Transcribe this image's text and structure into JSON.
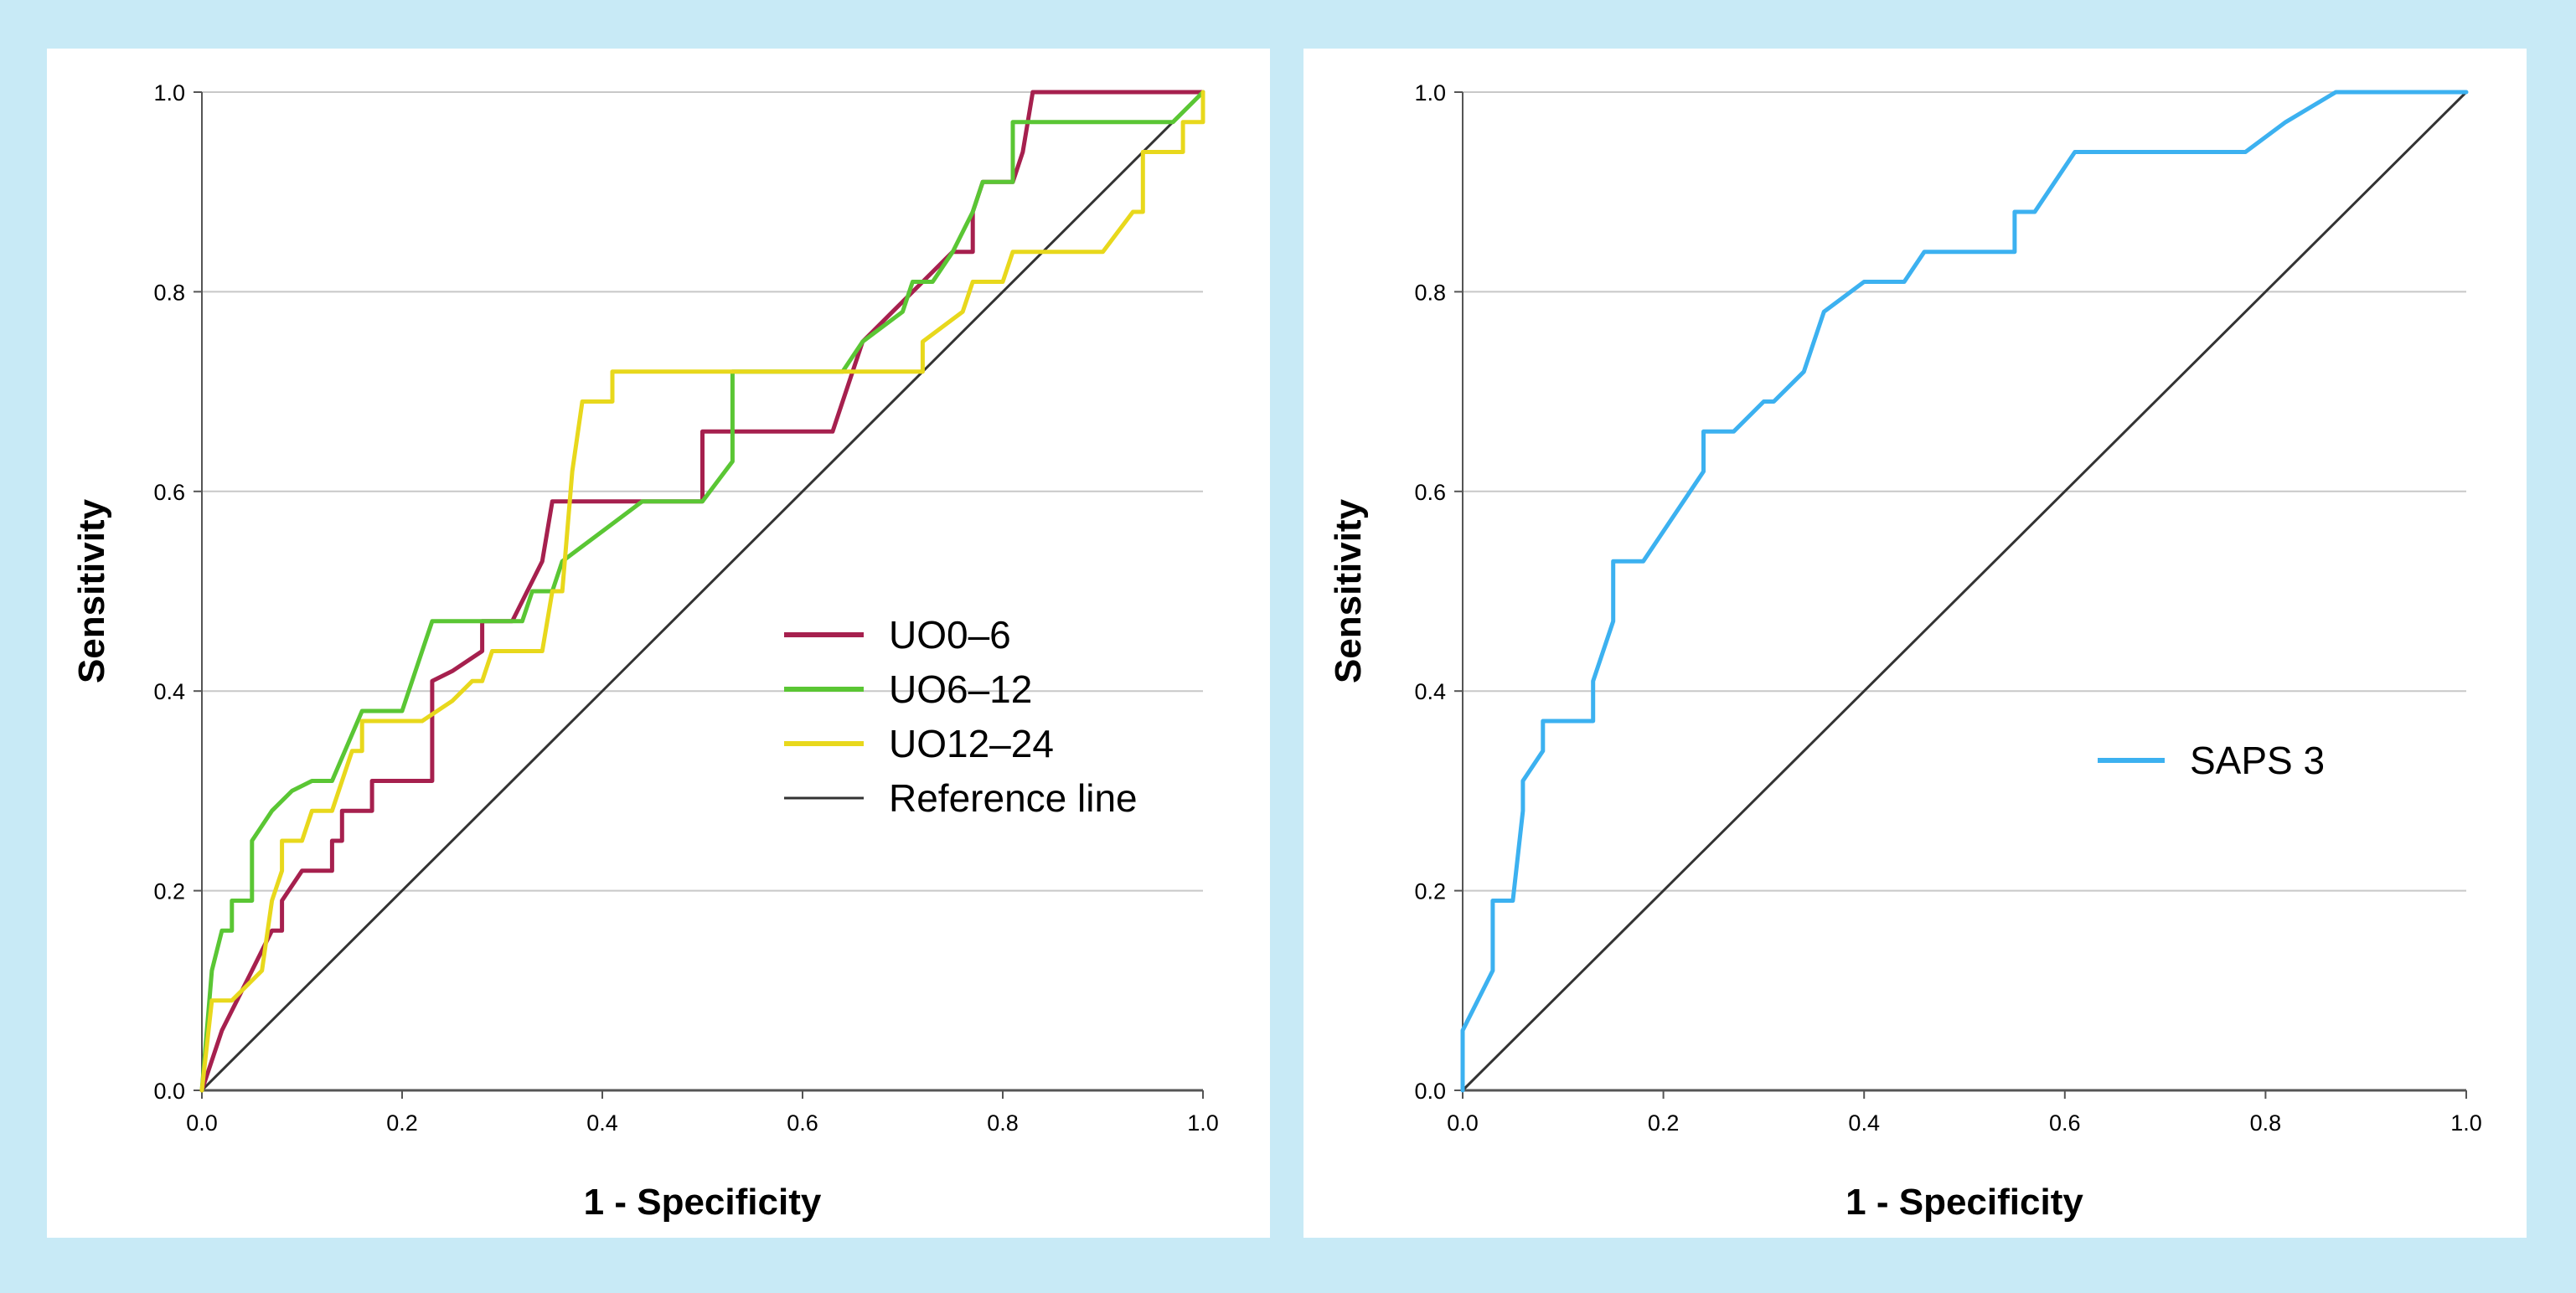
{
  "chart_data": [
    {
      "type": "line",
      "title": "",
      "xlabel": "1 - Specificity",
      "ylabel": "Sensitivity",
      "xlim": [
        0,
        1
      ],
      "ylim": [
        0,
        1
      ],
      "xticks": [
        "0.0",
        "0.2",
        "0.4",
        "0.6",
        "0.8",
        "1.0"
      ],
      "yticks": [
        "0.0",
        "0.2",
        "0.4",
        "0.6",
        "0.8",
        "1.0"
      ],
      "grid": "horizontal",
      "legend_position": "center-right",
      "series": [
        {
          "name": "UO0–6",
          "color": "#a6204e",
          "points": [
            [
              0,
              0
            ],
            [
              0.02,
              0.06
            ],
            [
              0.05,
              0.12
            ],
            [
              0.07,
              0.16
            ],
            [
              0.08,
              0.16
            ],
            [
              0.08,
              0.19
            ],
            [
              0.1,
              0.22
            ],
            [
              0.13,
              0.22
            ],
            [
              0.13,
              0.25
            ],
            [
              0.14,
              0.25
            ],
            [
              0.14,
              0.28
            ],
            [
              0.17,
              0.28
            ],
            [
              0.17,
              0.31
            ],
            [
              0.23,
              0.31
            ],
            [
              0.23,
              0.41
            ],
            [
              0.25,
              0.42
            ],
            [
              0.28,
              0.44
            ],
            [
              0.28,
              0.47
            ],
            [
              0.31,
              0.47
            ],
            [
              0.34,
              0.53
            ],
            [
              0.35,
              0.59
            ],
            [
              0.5,
              0.59
            ],
            [
              0.5,
              0.66
            ],
            [
              0.63,
              0.66
            ],
            [
              0.66,
              0.75
            ],
            [
              0.69,
              0.78
            ],
            [
              0.72,
              0.81
            ],
            [
              0.75,
              0.84
            ],
            [
              0.77,
              0.84
            ],
            [
              0.77,
              0.88
            ],
            [
              0.78,
              0.91
            ],
            [
              0.81,
              0.91
            ],
            [
              0.82,
              0.94
            ],
            [
              0.83,
              1.0
            ],
            [
              0.98,
              1.0
            ],
            [
              1.0,
              1.0
            ]
          ]
        },
        {
          "name": "UO6–12",
          "color": "#5ac634",
          "points": [
            [
              0,
              0
            ],
            [
              0.01,
              0.12
            ],
            [
              0.02,
              0.16
            ],
            [
              0.03,
              0.16
            ],
            [
              0.03,
              0.19
            ],
            [
              0.05,
              0.19
            ],
            [
              0.05,
              0.25
            ],
            [
              0.07,
              0.28
            ],
            [
              0.09,
              0.3
            ],
            [
              0.11,
              0.31
            ],
            [
              0.13,
              0.31
            ],
            [
              0.16,
              0.38
            ],
            [
              0.2,
              0.38
            ],
            [
              0.22,
              0.44
            ],
            [
              0.23,
              0.47
            ],
            [
              0.32,
              0.47
            ],
            [
              0.33,
              0.5
            ],
            [
              0.35,
              0.5
            ],
            [
              0.36,
              0.53
            ],
            [
              0.4,
              0.56
            ],
            [
              0.44,
              0.59
            ],
            [
              0.5,
              0.59
            ],
            [
              0.53,
              0.63
            ],
            [
              0.53,
              0.72
            ],
            [
              0.64,
              0.72
            ],
            [
              0.66,
              0.75
            ],
            [
              0.7,
              0.78
            ],
            [
              0.71,
              0.81
            ],
            [
              0.73,
              0.81
            ],
            [
              0.75,
              0.84
            ],
            [
              0.77,
              0.88
            ],
            [
              0.78,
              0.91
            ],
            [
              0.81,
              0.91
            ],
            [
              0.81,
              0.97
            ],
            [
              0.97,
              0.97
            ],
            [
              1.0,
              1.0
            ]
          ]
        },
        {
          "name": "UO12–24",
          "color": "#e8d81c",
          "points": [
            [
              0,
              0
            ],
            [
              0.01,
              0.09
            ],
            [
              0.03,
              0.09
            ],
            [
              0.06,
              0.12
            ],
            [
              0.07,
              0.19
            ],
            [
              0.08,
              0.22
            ],
            [
              0.08,
              0.25
            ],
            [
              0.1,
              0.25
            ],
            [
              0.11,
              0.28
            ],
            [
              0.13,
              0.28
            ],
            [
              0.14,
              0.31
            ],
            [
              0.15,
              0.34
            ],
            [
              0.16,
              0.34
            ],
            [
              0.16,
              0.37
            ],
            [
              0.22,
              0.37
            ],
            [
              0.25,
              0.39
            ],
            [
              0.27,
              0.41
            ],
            [
              0.28,
              0.41
            ],
            [
              0.29,
              0.44
            ],
            [
              0.34,
              0.44
            ],
            [
              0.35,
              0.5
            ],
            [
              0.36,
              0.5
            ],
            [
              0.37,
              0.62
            ],
            [
              0.38,
              0.69
            ],
            [
              0.41,
              0.69
            ],
            [
              0.41,
              0.72
            ],
            [
              0.72,
              0.72
            ],
            [
              0.72,
              0.75
            ],
            [
              0.76,
              0.78
            ],
            [
              0.77,
              0.81
            ],
            [
              0.8,
              0.81
            ],
            [
              0.81,
              0.84
            ],
            [
              0.9,
              0.84
            ],
            [
              0.93,
              0.88
            ],
            [
              0.94,
              0.88
            ],
            [
              0.94,
              0.94
            ],
            [
              0.98,
              0.94
            ],
            [
              0.98,
              0.97
            ],
            [
              1.0,
              0.97
            ],
            [
              1.0,
              1.0
            ]
          ]
        },
        {
          "name": "Reference line",
          "color": "#333333",
          "points": [
            [
              0,
              0
            ],
            [
              1,
              1
            ]
          ]
        }
      ]
    },
    {
      "type": "line",
      "title": "",
      "xlabel": "1 - Specificity",
      "ylabel": "Sensitivity",
      "xlim": [
        0,
        1
      ],
      "ylim": [
        0,
        1
      ],
      "xticks": [
        "0.0",
        "0.2",
        "0.4",
        "0.6",
        "0.8",
        "1.0"
      ],
      "yticks": [
        "0.0",
        "0.2",
        "0.4",
        "0.6",
        "0.8",
        "1.0"
      ],
      "grid": "horizontal",
      "legend_position": "center-right",
      "series": [
        {
          "name": "SAPS 3",
          "color": "#3cb1f0",
          "points": [
            [
              0,
              0
            ],
            [
              0,
              0.06
            ],
            [
              0.03,
              0.12
            ],
            [
              0.03,
              0.19
            ],
            [
              0.05,
              0.19
            ],
            [
              0.06,
              0.28
            ],
            [
              0.06,
              0.31
            ],
            [
              0.08,
              0.34
            ],
            [
              0.08,
              0.37
            ],
            [
              0.13,
              0.37
            ],
            [
              0.13,
              0.41
            ],
            [
              0.15,
              0.47
            ],
            [
              0.15,
              0.53
            ],
            [
              0.18,
              0.53
            ],
            [
              0.22,
              0.59
            ],
            [
              0.24,
              0.62
            ],
            [
              0.24,
              0.66
            ],
            [
              0.27,
              0.66
            ],
            [
              0.3,
              0.69
            ],
            [
              0.31,
              0.69
            ],
            [
              0.34,
              0.72
            ],
            [
              0.36,
              0.78
            ],
            [
              0.4,
              0.81
            ],
            [
              0.44,
              0.81
            ],
            [
              0.46,
              0.84
            ],
            [
              0.55,
              0.84
            ],
            [
              0.55,
              0.88
            ],
            [
              0.57,
              0.88
            ],
            [
              0.59,
              0.91
            ],
            [
              0.61,
              0.94
            ],
            [
              0.78,
              0.94
            ],
            [
              0.82,
              0.97
            ],
            [
              0.87,
              1.0
            ],
            [
              1.0,
              1.0
            ]
          ]
        },
        {
          "name": "Reference line",
          "color": "#333333",
          "points": [
            [
              0,
              0
            ],
            [
              1,
              1
            ]
          ],
          "in_legend": false
        }
      ]
    }
  ]
}
